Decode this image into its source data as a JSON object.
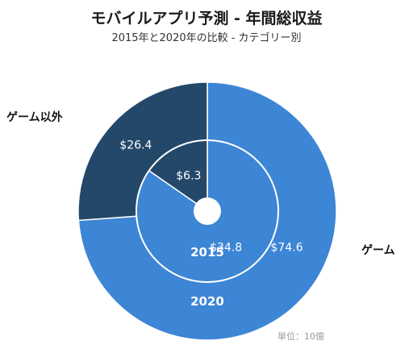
{
  "title": "モバイルアプリ予測 - 年間総収益",
  "subtitle": "2015年と2020年の比較 - カテゴリー別",
  "unit_note": "単位：10億",
  "chart_data": {
    "type": "pie",
    "subtype": "nested-donut",
    "categories": [
      "ゲーム",
      "ゲーム以外"
    ],
    "series": [
      {
        "name": "2020",
        "values": [
          74.6,
          26.4
        ],
        "labels": [
          "$74.6",
          "$26.4"
        ]
      },
      {
        "name": "2015",
        "values": [
          34.8,
          6.3
        ],
        "labels": [
          "$34.8",
          "$6.3"
        ]
      }
    ],
    "colors": {
      "games": "#3d85d5",
      "non_games": "#24486a",
      "divider": "#ffffff"
    }
  }
}
